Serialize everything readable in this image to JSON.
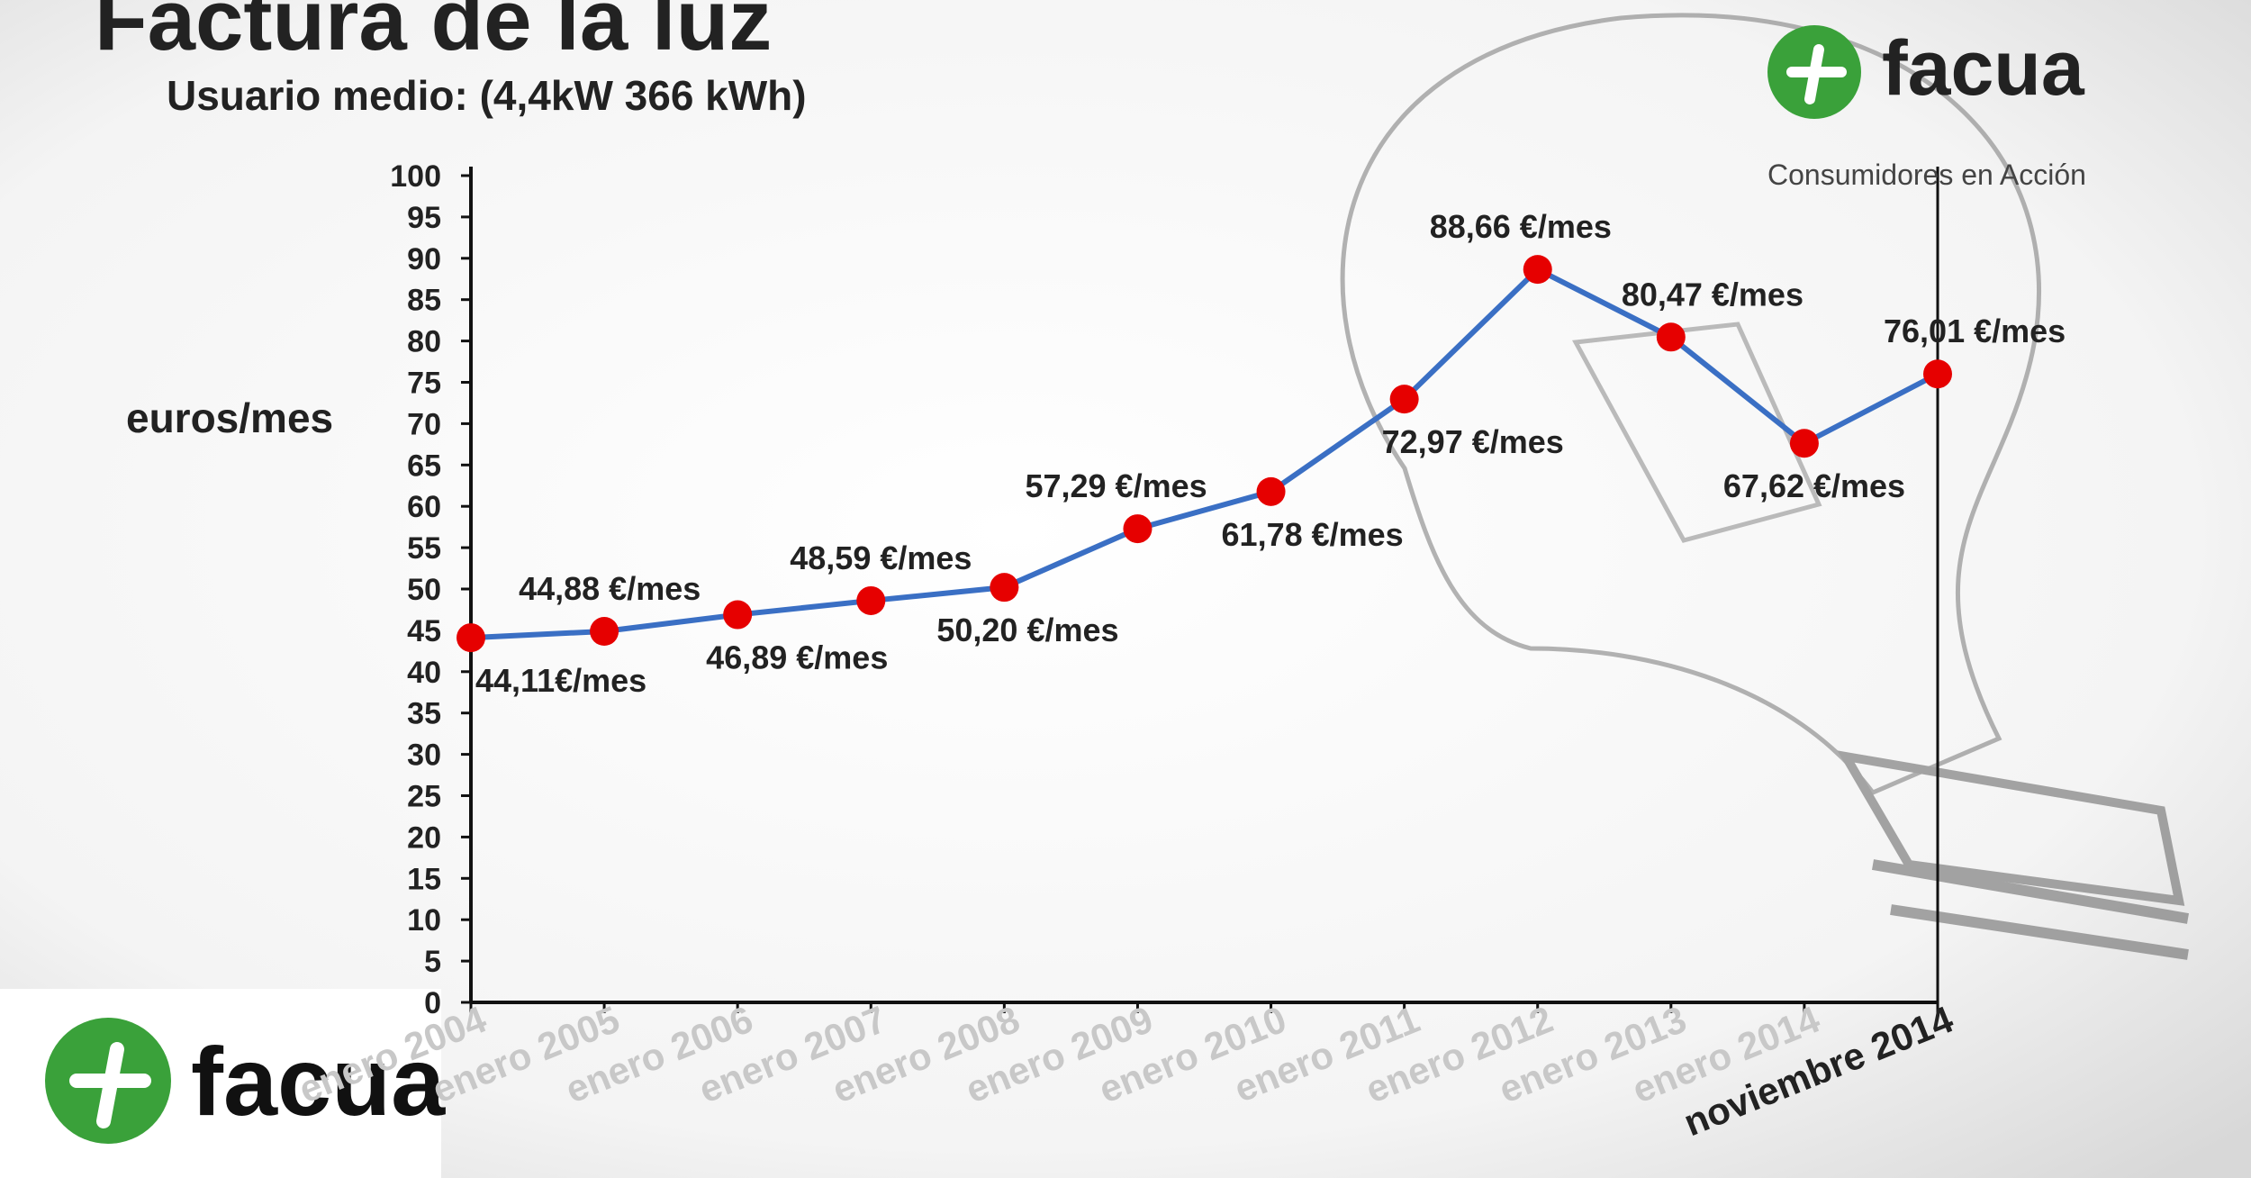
{
  "chart_data": {
    "type": "line",
    "title": "Factura de la luz",
    "subtitle": "Usuario medio: (4,4kW 366 kWh)",
    "y_label": "euros/mes",
    "categories": [
      "enero 2004",
      "enero 2005",
      "enero 2006",
      "enero 2007",
      "enero 2008",
      "enero 2009",
      "enero 2010",
      "enero 2011",
      "enero 2012",
      "enero 2013",
      "enero 2014",
      "noviembre 2014"
    ],
    "series": [
      {
        "color": "#3a6fc4",
        "marker_color": "#e60000",
        "values": [
          44.11,
          44.88,
          46.89,
          48.59,
          50.2,
          57.29,
          61.78,
          72.97,
          88.66,
          80.47,
          67.62,
          76.01
        ],
        "value_labels": [
          "44,11€/mes",
          "44,88 €/mes",
          "46,89 €/mes",
          "48,59 €/mes",
          "50,20 €/mes",
          "57,29 €/mes",
          "61,78 €/mes",
          "72,97 €/mes",
          "88,66 €/mes",
          "80,47 €/mes",
          "67,62 €/mes",
          "76,01 €/mes"
        ]
      }
    ],
    "ylim": [
      0,
      100
    ],
    "yticks": [
      0,
      5,
      10,
      15,
      20,
      25,
      30,
      35,
      40,
      45,
      50,
      55,
      60,
      65,
      70,
      75,
      80,
      85,
      90,
      95,
      100
    ],
    "grid": false
  },
  "logos": {
    "top_name": "facua",
    "top_tagline": "Consumidores en Acción",
    "bottom_name": "facua"
  }
}
